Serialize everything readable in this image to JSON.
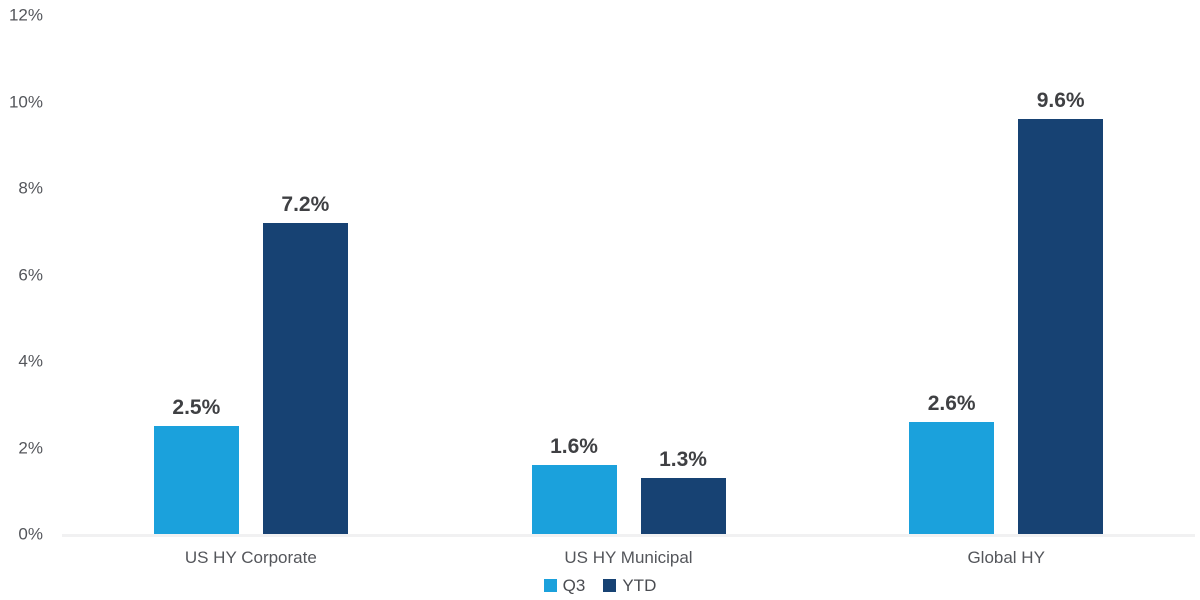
{
  "chart_data": {
    "type": "bar",
    "title": "",
    "categories": [
      "US HY Corporate",
      "US HY Municipal",
      "Global HY"
    ],
    "series": [
      {
        "name": "Q3",
        "color": "#1ba1dc",
        "values": [
          2.5,
          1.6,
          2.6
        ],
        "data_labels": [
          "2.5%",
          "1.6%",
          "2.6%"
        ]
      },
      {
        "name": "YTD",
        "color": "#174273",
        "values": [
          7.2,
          1.3,
          9.6
        ],
        "data_labels": [
          "7.2%",
          "1.3%",
          "9.6%"
        ]
      }
    ],
    "y_axis": {
      "min": 0,
      "max": 12,
      "step": 2,
      "ticks": [
        "0%",
        "2%",
        "4%",
        "6%",
        "8%",
        "10%",
        "12%"
      ],
      "grid": false
    },
    "legend": {
      "position": "bottom-center",
      "entries": [
        {
          "label": "Q3",
          "color": "#1ba1dc"
        },
        {
          "label": "YTD",
          "color": "#174273"
        }
      ]
    }
  },
  "colors": {
    "q3_bar": "#1ba1dc",
    "ytd_bar": "#174273",
    "axis_text": "#54565b",
    "data_label_text": "#3f4043",
    "baseline": "#f1f1f2",
    "background": "#ffffff"
  }
}
